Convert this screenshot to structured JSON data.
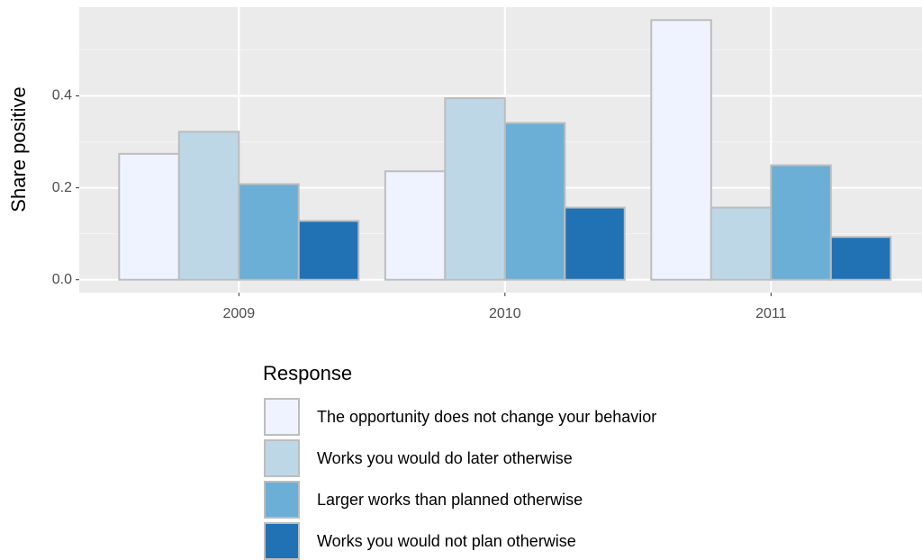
{
  "chart_data": {
    "type": "bar",
    "y_label": "Share positive",
    "legend_title": "Response",
    "categories": [
      "2009",
      "2010",
      "2011"
    ],
    "series": [
      {
        "name": "The opportunity does not change your behavior",
        "color": "#eff3ff",
        "values": [
          0.274,
          0.236,
          0.565
        ]
      },
      {
        "name": "Works you would do later otherwise",
        "color": "#bdd7e7",
        "values": [
          0.322,
          0.395,
          0.157
        ]
      },
      {
        "name": "Larger works than planned otherwise",
        "color": "#6baed6",
        "values": [
          0.208,
          0.341,
          0.249
        ]
      },
      {
        "name": "Works you would not plan otherwise",
        "color": "#2171b5",
        "values": [
          0.128,
          0.157,
          0.093
        ]
      }
    ],
    "ylim": [
      -0.028,
      0.593
    ],
    "yticks": [
      {
        "value": 0,
        "label": "0.0"
      },
      0.2,
      0.4
    ],
    "yminor": [
      0.1,
      0.3,
      0.5
    ],
    "grid": true,
    "legend": "bottom"
  }
}
